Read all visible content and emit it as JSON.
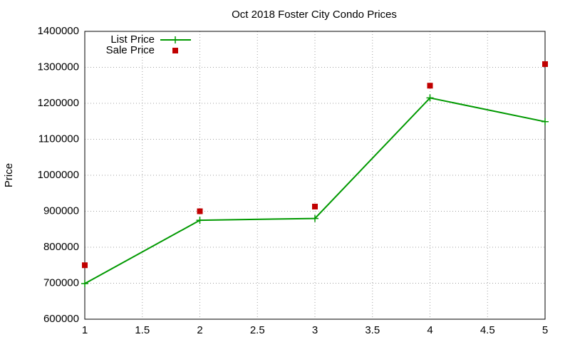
{
  "chart_data": {
    "type": "line",
    "title": "Oct 2018 Foster City Condo Prices",
    "y_label": "Price",
    "x": [
      1,
      2,
      3,
      4,
      5
    ],
    "series": [
      {
        "name": "List Price",
        "color": "#009900",
        "style": "line-points",
        "values": [
          699000,
          875000,
          880000,
          1215000,
          1149000
        ]
      },
      {
        "name": "Sale Price",
        "color": "#c00000",
        "style": "points",
        "values": [
          750000,
          900000,
          913000,
          1249000,
          1309000
        ]
      }
    ],
    "xlim": [
      1,
      5
    ],
    "xticks": [
      1,
      1.5,
      2,
      2.5,
      3,
      3.5,
      4,
      4.5,
      5
    ],
    "ylim": [
      600000,
      1400000
    ],
    "yticks": [
      600000,
      700000,
      800000,
      900000,
      1000000,
      1100000,
      1200000,
      1300000,
      1400000
    ],
    "grid": true,
    "legend": "top-left"
  }
}
